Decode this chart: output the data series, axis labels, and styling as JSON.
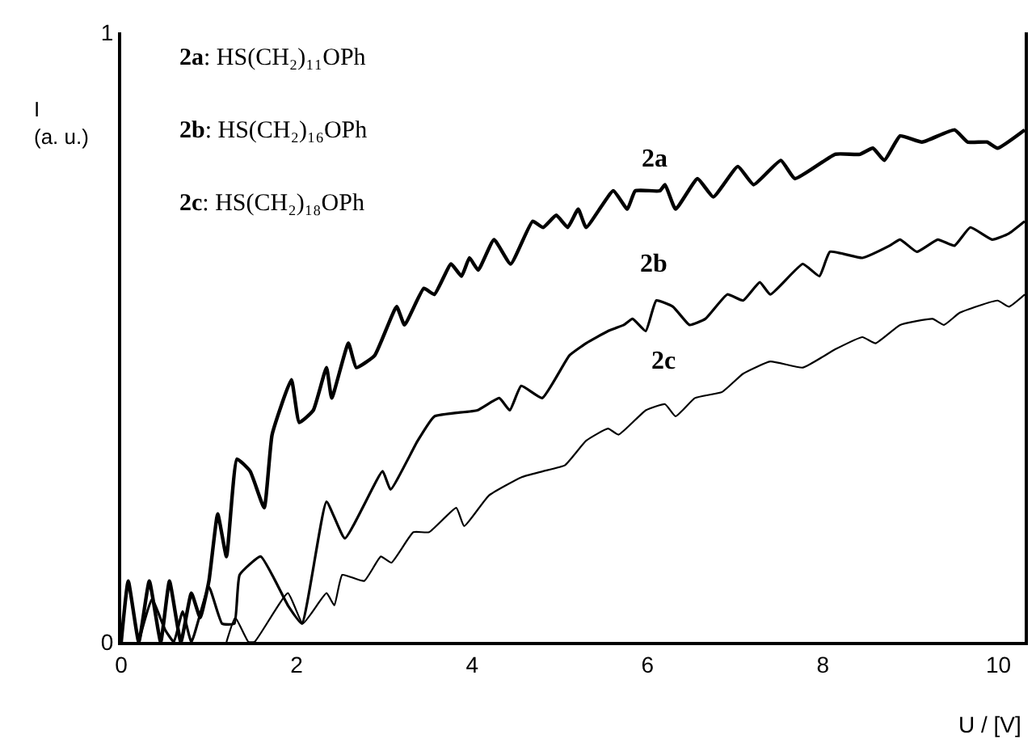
{
  "chart_data": {
    "type": "line",
    "xlabel": "U / [V]",
    "ylabel": "I\n(a. u.)",
    "xlim": [
      0,
      10.3
    ],
    "xticks": [
      0,
      2,
      4,
      6,
      8,
      10
    ],
    "ylim": [
      0,
      1
    ],
    "yticks": [
      0,
      1
    ],
    "marker": "none",
    "line_style": "solid",
    "annotations": [
      "2a: HS(CH₂)₁₁OPh",
      "2b: HS(CH₂)₁₆OPh",
      "2c: HS(CH₂)₁₈OPh",
      "2a",
      "2b",
      "2c"
    ],
    "series": [
      {
        "color": "#000000",
        "x": [
          0,
          0.08,
          0.2,
          0.32,
          0.45,
          0.55,
          0.68,
          0.8,
          0.9,
          1.0,
          1.1,
          1.2,
          1.32,
          1.47,
          1.63,
          1.72,
          1.94,
          2.03,
          2.19,
          2.34,
          2.4,
          2.59,
          2.68,
          2.89,
          3.14,
          3.23,
          3.45,
          3.57,
          3.76,
          3.88,
          3.97,
          4.07,
          4.25,
          4.44,
          4.69,
          4.81,
          4.96,
          5.09,
          5.21,
          5.3,
          5.61,
          5.77,
          5.86,
          6.14,
          6.2,
          6.32,
          6.57,
          6.75,
          7.03,
          7.21,
          7.52,
          7.68,
          8.14,
          8.42,
          8.57,
          8.7,
          8.88,
          9.13,
          9.5,
          9.65,
          9.87,
          9.99,
          10.3
        ],
        "values": [
          0,
          0.1,
          0,
          0.1,
          0,
          0.1,
          0,
          0.08,
          0.04,
          0.1,
          0.21,
          0.14,
          0.3,
          0.28,
          0.22,
          0.34,
          0.43,
          0.36,
          0.38,
          0.45,
          0.4,
          0.49,
          0.45,
          0.47,
          0.55,
          0.52,
          0.58,
          0.57,
          0.62,
          0.6,
          0.63,
          0.61,
          0.66,
          0.62,
          0.69,
          0.68,
          0.7,
          0.68,
          0.71,
          0.68,
          0.74,
          0.71,
          0.74,
          0.74,
          0.75,
          0.71,
          0.76,
          0.73,
          0.78,
          0.75,
          0.79,
          0.76,
          0.8,
          0.8,
          0.81,
          0.79,
          0.83,
          0.82,
          0.84,
          0.82,
          0.82,
          0.81,
          0.84
        ]
      },
      {
        "color": "#000000",
        "x": [
          0.2,
          0.35,
          0.5,
          0.6,
          0.7,
          0.8,
          1.0,
          1.15,
          1.29,
          1.35,
          1.59,
          1.9,
          2.06,
          2.34,
          2.55,
          2.98,
          3.07,
          3.38,
          3.57,
          4.06,
          4.31,
          4.43,
          4.56,
          4.8,
          5.11,
          5.3,
          5.55,
          5.73,
          5.83,
          5.98,
          6.1,
          6.29,
          6.48,
          6.66,
          6.91,
          7.09,
          7.28,
          7.4,
          7.77,
          7.96,
          8.08,
          8.45,
          8.76,
          8.88,
          9.07,
          9.31,
          9.5,
          9.68,
          9.93,
          10.12,
          10.3
        ],
        "values": [
          0,
          0.07,
          0.02,
          0,
          0.05,
          0,
          0.09,
          0.03,
          0.03,
          0.11,
          0.14,
          0.06,
          0.03,
          0.23,
          0.17,
          0.28,
          0.25,
          0.33,
          0.37,
          0.38,
          0.4,
          0.38,
          0.42,
          0.4,
          0.47,
          0.49,
          0.51,
          0.52,
          0.53,
          0.51,
          0.56,
          0.55,
          0.52,
          0.53,
          0.57,
          0.56,
          0.59,
          0.57,
          0.62,
          0.6,
          0.64,
          0.63,
          0.65,
          0.66,
          0.64,
          0.66,
          0.65,
          0.68,
          0.66,
          0.67,
          0.69
        ]
      },
      {
        "color": "#000000",
        "x": [
          1.2,
          1.3,
          1.45,
          1.52,
          1.9,
          2.07,
          2.34,
          2.43,
          2.52,
          2.77,
          2.96,
          3.08,
          3.33,
          3.51,
          3.82,
          3.91,
          4.19,
          4.56,
          4.81,
          5.06,
          5.3,
          5.55,
          5.67,
          5.98,
          6.2,
          6.32,
          6.54,
          6.85,
          7.09,
          7.4,
          7.77,
          8.14,
          8.45,
          8.6,
          8.88,
          9.25,
          9.38,
          9.56,
          9.99,
          10.12,
          10.3
        ],
        "values": [
          0,
          0.04,
          0,
          0,
          0.08,
          0.03,
          0.08,
          0.06,
          0.11,
          0.1,
          0.14,
          0.13,
          0.18,
          0.18,
          0.22,
          0.19,
          0.24,
          0.27,
          0.28,
          0.29,
          0.33,
          0.35,
          0.34,
          0.38,
          0.39,
          0.37,
          0.4,
          0.41,
          0.44,
          0.46,
          0.45,
          0.48,
          0.5,
          0.49,
          0.52,
          0.53,
          0.52,
          0.54,
          0.56,
          0.55,
          0.57
        ]
      }
    ]
  }
}
